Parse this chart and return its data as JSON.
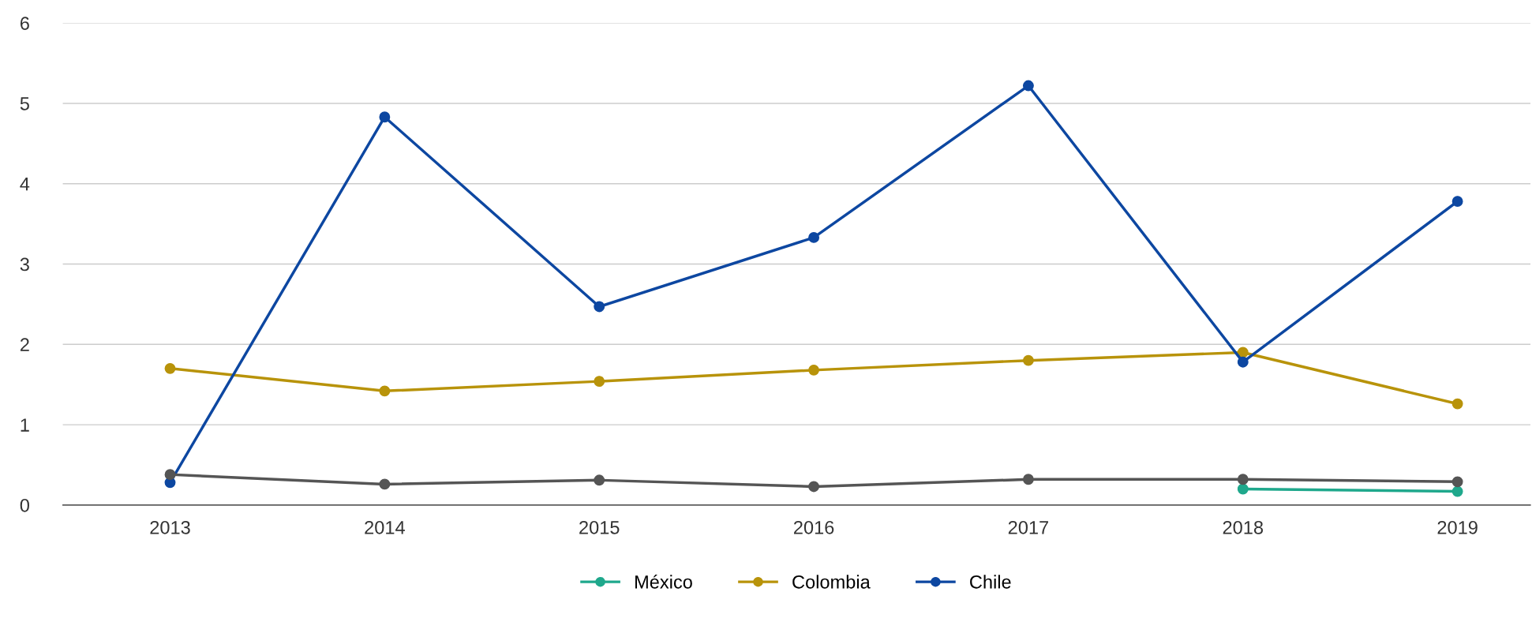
{
  "chart_data": {
    "type": "line",
    "categories": [
      "2013",
      "2014",
      "2015",
      "2016",
      "2017",
      "2018",
      "2019"
    ],
    "series": [
      {
        "name": "México",
        "color": "#1fa88c",
        "values": [
          null,
          null,
          null,
          null,
          null,
          0.2,
          0.17
        ]
      },
      {
        "name": "Colombia",
        "color": "#b8930a",
        "values": [
          1.7,
          1.42,
          1.54,
          1.68,
          1.8,
          1.9,
          1.26
        ]
      },
      {
        "name": "Chile",
        "color": "#0d47a1",
        "values": [
          0.28,
          4.83,
          2.47,
          3.33,
          5.22,
          1.78,
          3.78
        ]
      },
      {
        "color": "#555555",
        "values": [
          0.38,
          0.26,
          0.31,
          0.23,
          0.32,
          0.32,
          0.29
        ]
      }
    ],
    "ylim": [
      0,
      6
    ],
    "yticks": [
      0,
      1,
      2,
      3,
      4,
      5,
      6
    ],
    "grid": "y",
    "legend": "bottom",
    "marker": "circle",
    "line_style": "solid"
  }
}
